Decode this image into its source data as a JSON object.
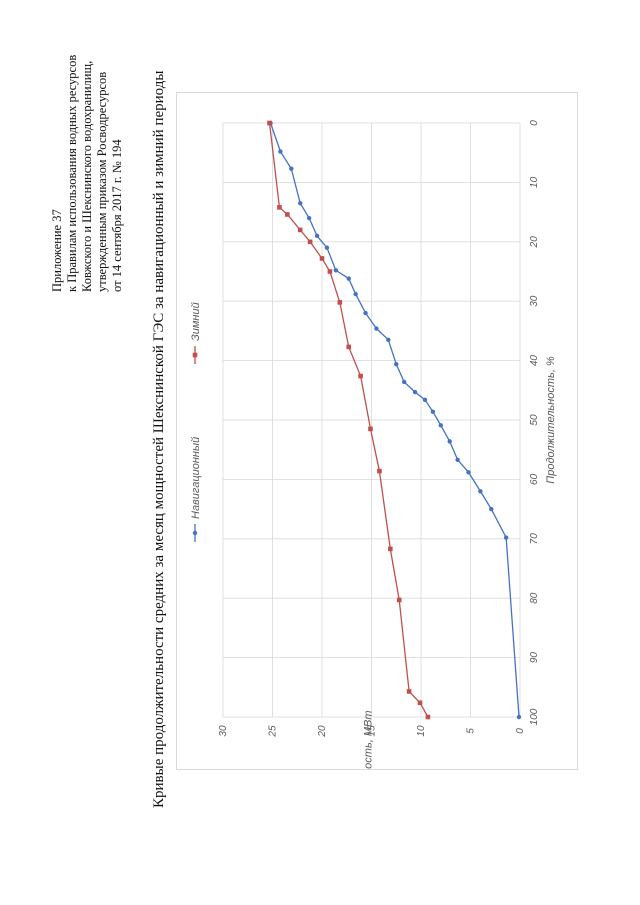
{
  "appendix": {
    "lines": [
      "Приложение 37",
      "к Правилам использования водных ресурсов",
      "Ковжского и Шекснинского водохранилищ,",
      "утвержденным приказом Росводресурсов",
      "от 14 сентября 2017 г. № 194"
    ]
  },
  "document_title": "Кривые продолжительности средних за месяц мощностей Шекснинской ГЭС за навигационный и зимний периоды",
  "chart_data": {
    "type": "line",
    "title": "",
    "xlabel": "Продолжительность, %",
    "ylabel": "Мощность, МВт",
    "xlim": [
      0,
      100
    ],
    "ylim": [
      0,
      30
    ],
    "xticks": [
      0,
      10,
      20,
      30,
      40,
      50,
      60,
      70,
      80,
      90,
      100
    ],
    "yticks": [
      0,
      5,
      10,
      15,
      20,
      25,
      30
    ],
    "grid": true,
    "legend_position": "top",
    "series": [
      {
        "name": "Навигационный",
        "color": "#4472c4",
        "marker": "circle",
        "points": [
          [
            0,
            25.2
          ],
          [
            4.8,
            24.2
          ],
          [
            7.7,
            23.1
          ],
          [
            13.5,
            22.2
          ],
          [
            16,
            21.3
          ],
          [
            19,
            20.5
          ],
          [
            21,
            19.5
          ],
          [
            24.8,
            18.6
          ],
          [
            26.2,
            17.3
          ],
          [
            28.8,
            16.6
          ],
          [
            32,
            15.6
          ],
          [
            34.6,
            14.5
          ],
          [
            36.5,
            13.3
          ],
          [
            40.6,
            12.5
          ],
          [
            43.6,
            11.7
          ],
          [
            45.3,
            10.6
          ],
          [
            46.6,
            9.6
          ],
          [
            48.6,
            8.8
          ],
          [
            50.9,
            8.0
          ],
          [
            53.6,
            7.1
          ],
          [
            56.7,
            6.3
          ],
          [
            58.8,
            5.2
          ],
          [
            62.0,
            4.0
          ],
          [
            65.0,
            2.9
          ],
          [
            69.8,
            1.4
          ],
          [
            100,
            0.1
          ]
        ]
      },
      {
        "name": "Зимний",
        "color": "#c0504d",
        "marker": "square",
        "points": [
          [
            0,
            25.3
          ],
          [
            14.2,
            24.3
          ],
          [
            15.4,
            23.5
          ],
          [
            18,
            22.2
          ],
          [
            20,
            21.2
          ],
          [
            22.8,
            20.0
          ],
          [
            25.0,
            19.2
          ],
          [
            30.2,
            18.2
          ],
          [
            37.7,
            17.3
          ],
          [
            42.6,
            16.1
          ],
          [
            51.5,
            15.1
          ],
          [
            58.6,
            14.2
          ],
          [
            71.7,
            13.1
          ],
          [
            80.3,
            12.2
          ],
          [
            95.7,
            11.2
          ],
          [
            97.6,
            10.1
          ],
          [
            100,
            9.3
          ]
        ]
      }
    ]
  }
}
